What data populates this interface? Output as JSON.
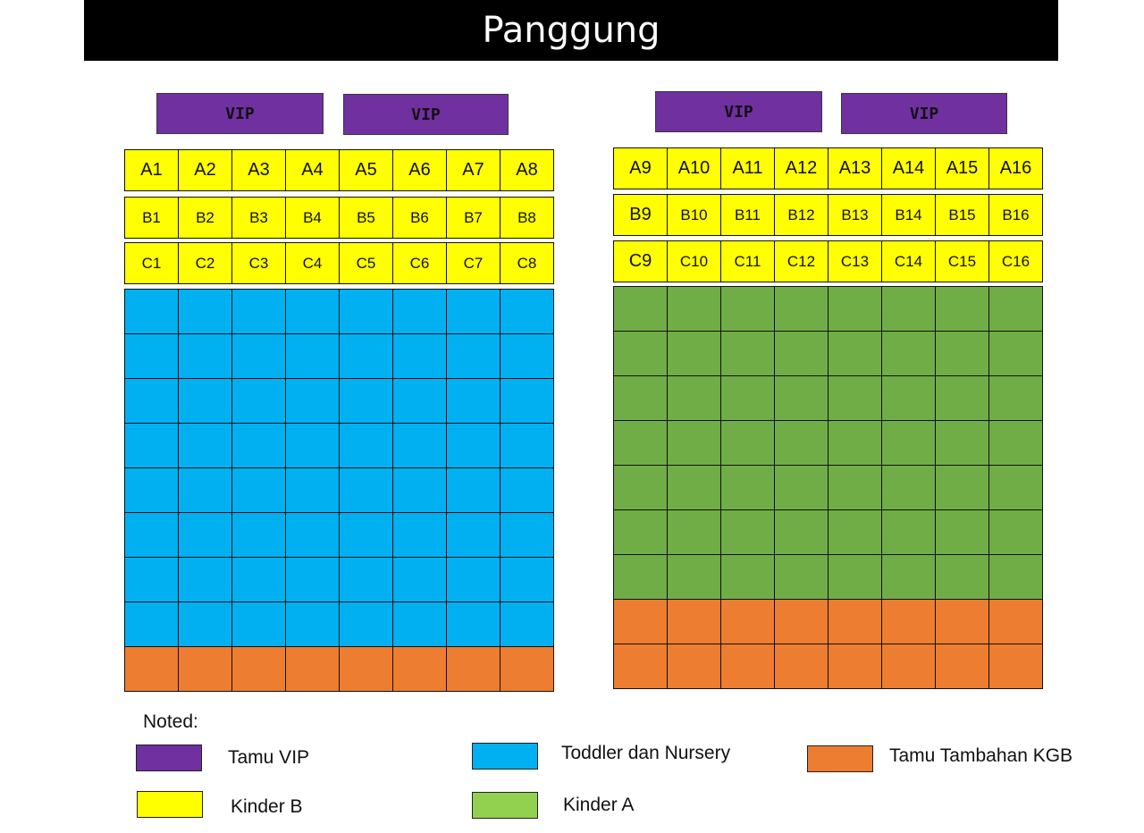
{
  "stage": {
    "title": "Panggung"
  },
  "colors": {
    "vip": "#7030a0",
    "kinder_b": "#ffff00",
    "toddler": "#00b0f0",
    "kinder_a": "#70ad47",
    "extra": "#ed7d31",
    "legend_kinder_a": "#92d050"
  },
  "vip_blocks": [
    {
      "label": "VIP"
    },
    {
      "label": "VIP"
    },
    {
      "label": "VIP"
    },
    {
      "label": "VIP"
    }
  ],
  "left_section": {
    "labeled_rows": [
      [
        "A1",
        "A2",
        "A3",
        "A4",
        "A5",
        "A6",
        "A7",
        "A8"
      ],
      [
        "B1",
        "B2",
        "B3",
        "B4",
        "B5",
        "B6",
        "B7",
        "B8"
      ],
      [
        "C1",
        "C2",
        "C3",
        "C4",
        "C5",
        "C6",
        "C7",
        "C8"
      ]
    ],
    "unlabeled_rows": [
      {
        "category": "toddler"
      },
      {
        "category": "toddler"
      },
      {
        "category": "toddler"
      },
      {
        "category": "toddler"
      },
      {
        "category": "toddler"
      },
      {
        "category": "toddler"
      },
      {
        "category": "toddler"
      },
      {
        "category": "toddler"
      },
      {
        "category": "extra"
      }
    ],
    "seats_per_row": 8
  },
  "right_section": {
    "labeled_rows": [
      [
        "A9",
        "A10",
        "A11",
        "A12",
        "A13",
        "A14",
        "A15",
        "A16"
      ],
      [
        "B9",
        "B10",
        "B11",
        "B12",
        "B13",
        "B14",
        "B15",
        "B16"
      ],
      [
        "C9",
        "C10",
        "C11",
        "C12",
        "C13",
        "C14",
        "C15",
        "C16"
      ]
    ],
    "unlabeled_rows": [
      {
        "category": "kinder_a"
      },
      {
        "category": "kinder_a"
      },
      {
        "category": "kinder_a"
      },
      {
        "category": "kinder_a"
      },
      {
        "category": "kinder_a"
      },
      {
        "category": "kinder_a"
      },
      {
        "category": "kinder_a"
      },
      {
        "category": "extra"
      },
      {
        "category": "extra"
      }
    ],
    "seats_per_row": 8
  },
  "legend": {
    "title": "Noted:",
    "items": [
      {
        "label": "Tamu VIP",
        "color": "#7030a0"
      },
      {
        "label": "Kinder B",
        "color": "#ffff00"
      },
      {
        "label": "Toddler dan Nursery",
        "color": "#00b0f0"
      },
      {
        "label": "Kinder A",
        "color": "#92d050"
      },
      {
        "label": "Tamu Tambahan KGB",
        "color": "#ed7d31"
      }
    ]
  }
}
